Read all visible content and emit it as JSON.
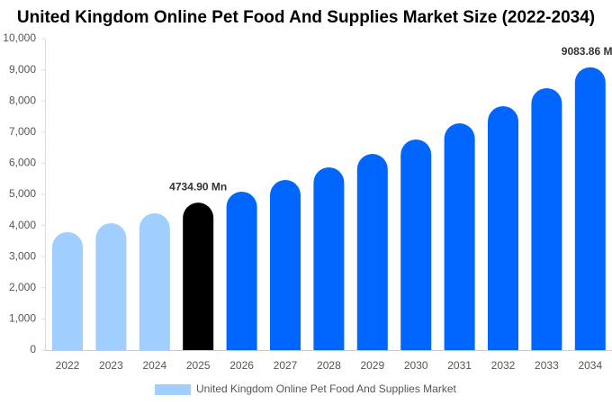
{
  "chart_data": {
    "type": "bar",
    "title": "United Kingdom Online Pet Food And Supplies Market Size (2022-2034)",
    "categories": [
      "2022",
      "2023",
      "2024",
      "2025",
      "2026",
      "2027",
      "2028",
      "2029",
      "2030",
      "2031",
      "2032",
      "2033",
      "2034"
    ],
    "series": [
      {
        "name": "United Kingdom Online Pet Food And Supplies Market",
        "color": "#a0cfff",
        "colors": [
          "#a0cfff",
          "#a0cfff",
          "#a0cfff",
          "#000000",
          "#0066ff",
          "#0066ff",
          "#0066ff",
          "#0066ff",
          "#0066ff",
          "#0066ff",
          "#0066ff",
          "#0066ff",
          "#0066ff"
        ],
        "values": [
          3790,
          4075,
          4393,
          4734.9,
          5087,
          5462,
          5867,
          6300,
          6763,
          7283,
          7832,
          8410,
          9083.86
        ],
        "value_labels": [
          null,
          null,
          null,
          "4734.90 Mn",
          null,
          null,
          null,
          null,
          null,
          null,
          null,
          null,
          "9083.86 Mn"
        ]
      }
    ],
    "ylim": [
      0,
      10000
    ],
    "yticks": [
      0,
      {
        "value": 1000,
        "label": "1,000"
      },
      {
        "value": 2000,
        "label": "2,000"
      },
      {
        "value": 3000,
        "label": "3,000"
      },
      {
        "value": 4000,
        "label": "4,000"
      },
      {
        "value": 5000,
        "label": "5,000"
      },
      {
        "value": 6000,
        "label": "6,000"
      },
      {
        "value": 7000,
        "label": "7,000"
      },
      {
        "value": 8000,
        "label": "8,000"
      },
      {
        "value": 9000,
        "label": "9,000"
      },
      {
        "value": 10000,
        "label": "10,000"
      }
    ],
    "grid": false
  }
}
